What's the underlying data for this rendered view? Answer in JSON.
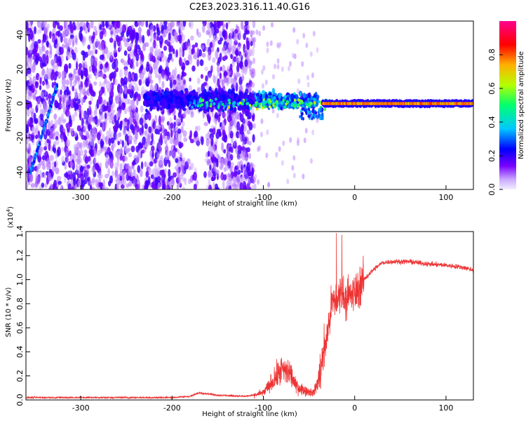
{
  "title": "C2E3.2023.316.11.40.G16",
  "chart_data": [
    {
      "type": "heatmap",
      "xlabel": "Height of straight line (km)",
      "ylabel": "Frequency (Hz)",
      "xlim": [
        -360,
        130
      ],
      "ylim": [
        -50,
        48
      ],
      "x_ticks": [
        -300,
        -200,
        -100,
        0,
        100
      ],
      "y_ticks": [
        -40,
        -20,
        0,
        20,
        40
      ],
      "colorbar": {
        "label": "Normalized spectral amplitude",
        "range": [
          0,
          1
        ],
        "ticks": [
          0.0,
          0.2,
          0.4,
          0.6,
          0.8
        ],
        "tick_labels": [
          "0.0",
          "0.2",
          "0.4",
          "0.6",
          "0.8"
        ],
        "colors": [
          "#f0f0ff",
          "#7a00ff",
          "#0000ff",
          "#00c8ff",
          "#00ff60",
          "#c8ff00",
          "#ff8000",
          "#ff0000",
          "#ff0090"
        ]
      },
      "features": [
        {
          "x": [
            -360,
            -110
          ],
          "y": [
            -50,
            48
          ],
          "level": 0.2
        },
        {
          "x": [
            -230,
            -40
          ],
          "y": [
            -8,
            10
          ],
          "level": 0.35
        },
        {
          "x": [
            -100,
            -30
          ],
          "y": [
            -6,
            6
          ],
          "level": 0.5
        },
        {
          "x": [
            -30,
            130
          ],
          "y": [
            -1.5,
            1.5
          ],
          "level": 0.8
        },
        {
          "x": [
            -355,
            -325
          ],
          "y": [
            -40,
            12
          ],
          "level": 0.35
        }
      ]
    },
    {
      "type": "line",
      "xlabel": "Height of straight line (km)",
      "ylabel": "SNR (10 * v/v)",
      "y_scale_label": "(x10",
      "y_scale_exp": "4",
      "xlim": [
        -360,
        130
      ],
      "ylim": [
        0.0,
        1.4
      ],
      "x_ticks": [
        -300,
        -200,
        -100,
        0,
        100
      ],
      "y_ticks": [
        0.0,
        0.2,
        0.4,
        0.6,
        0.8,
        1.0,
        1.2,
        1.4
      ],
      "y_tick_labels": [
        "0.0",
        "0.2",
        "0.4",
        "0.6",
        "0.8",
        "1.0",
        "1.2",
        "1.4"
      ],
      "color": "#ee3333",
      "series": [
        {
          "x": [
            -360,
            -300,
            -250,
            -200,
            -180,
            -170,
            -150,
            -120,
            -110,
            -100,
            -90,
            -80,
            -70,
            -65,
            -55,
            -45,
            -40,
            -30,
            -25,
            -20,
            -15,
            -10,
            0,
            10,
            20,
            30,
            40,
            60,
            80,
            100,
            120,
            130
          ],
          "values": [
            0.02,
            0.02,
            0.02,
            0.02,
            0.03,
            0.06,
            0.04,
            0.03,
            0.04,
            0.06,
            0.15,
            0.25,
            0.22,
            0.12,
            0.08,
            0.06,
            0.15,
            0.55,
            0.8,
            0.82,
            0.9,
            0.85,
            0.88,
            1.0,
            1.08,
            1.14,
            1.15,
            1.15,
            1.13,
            1.12,
            1.1,
            1.08
          ]
        }
      ]
    }
  ]
}
